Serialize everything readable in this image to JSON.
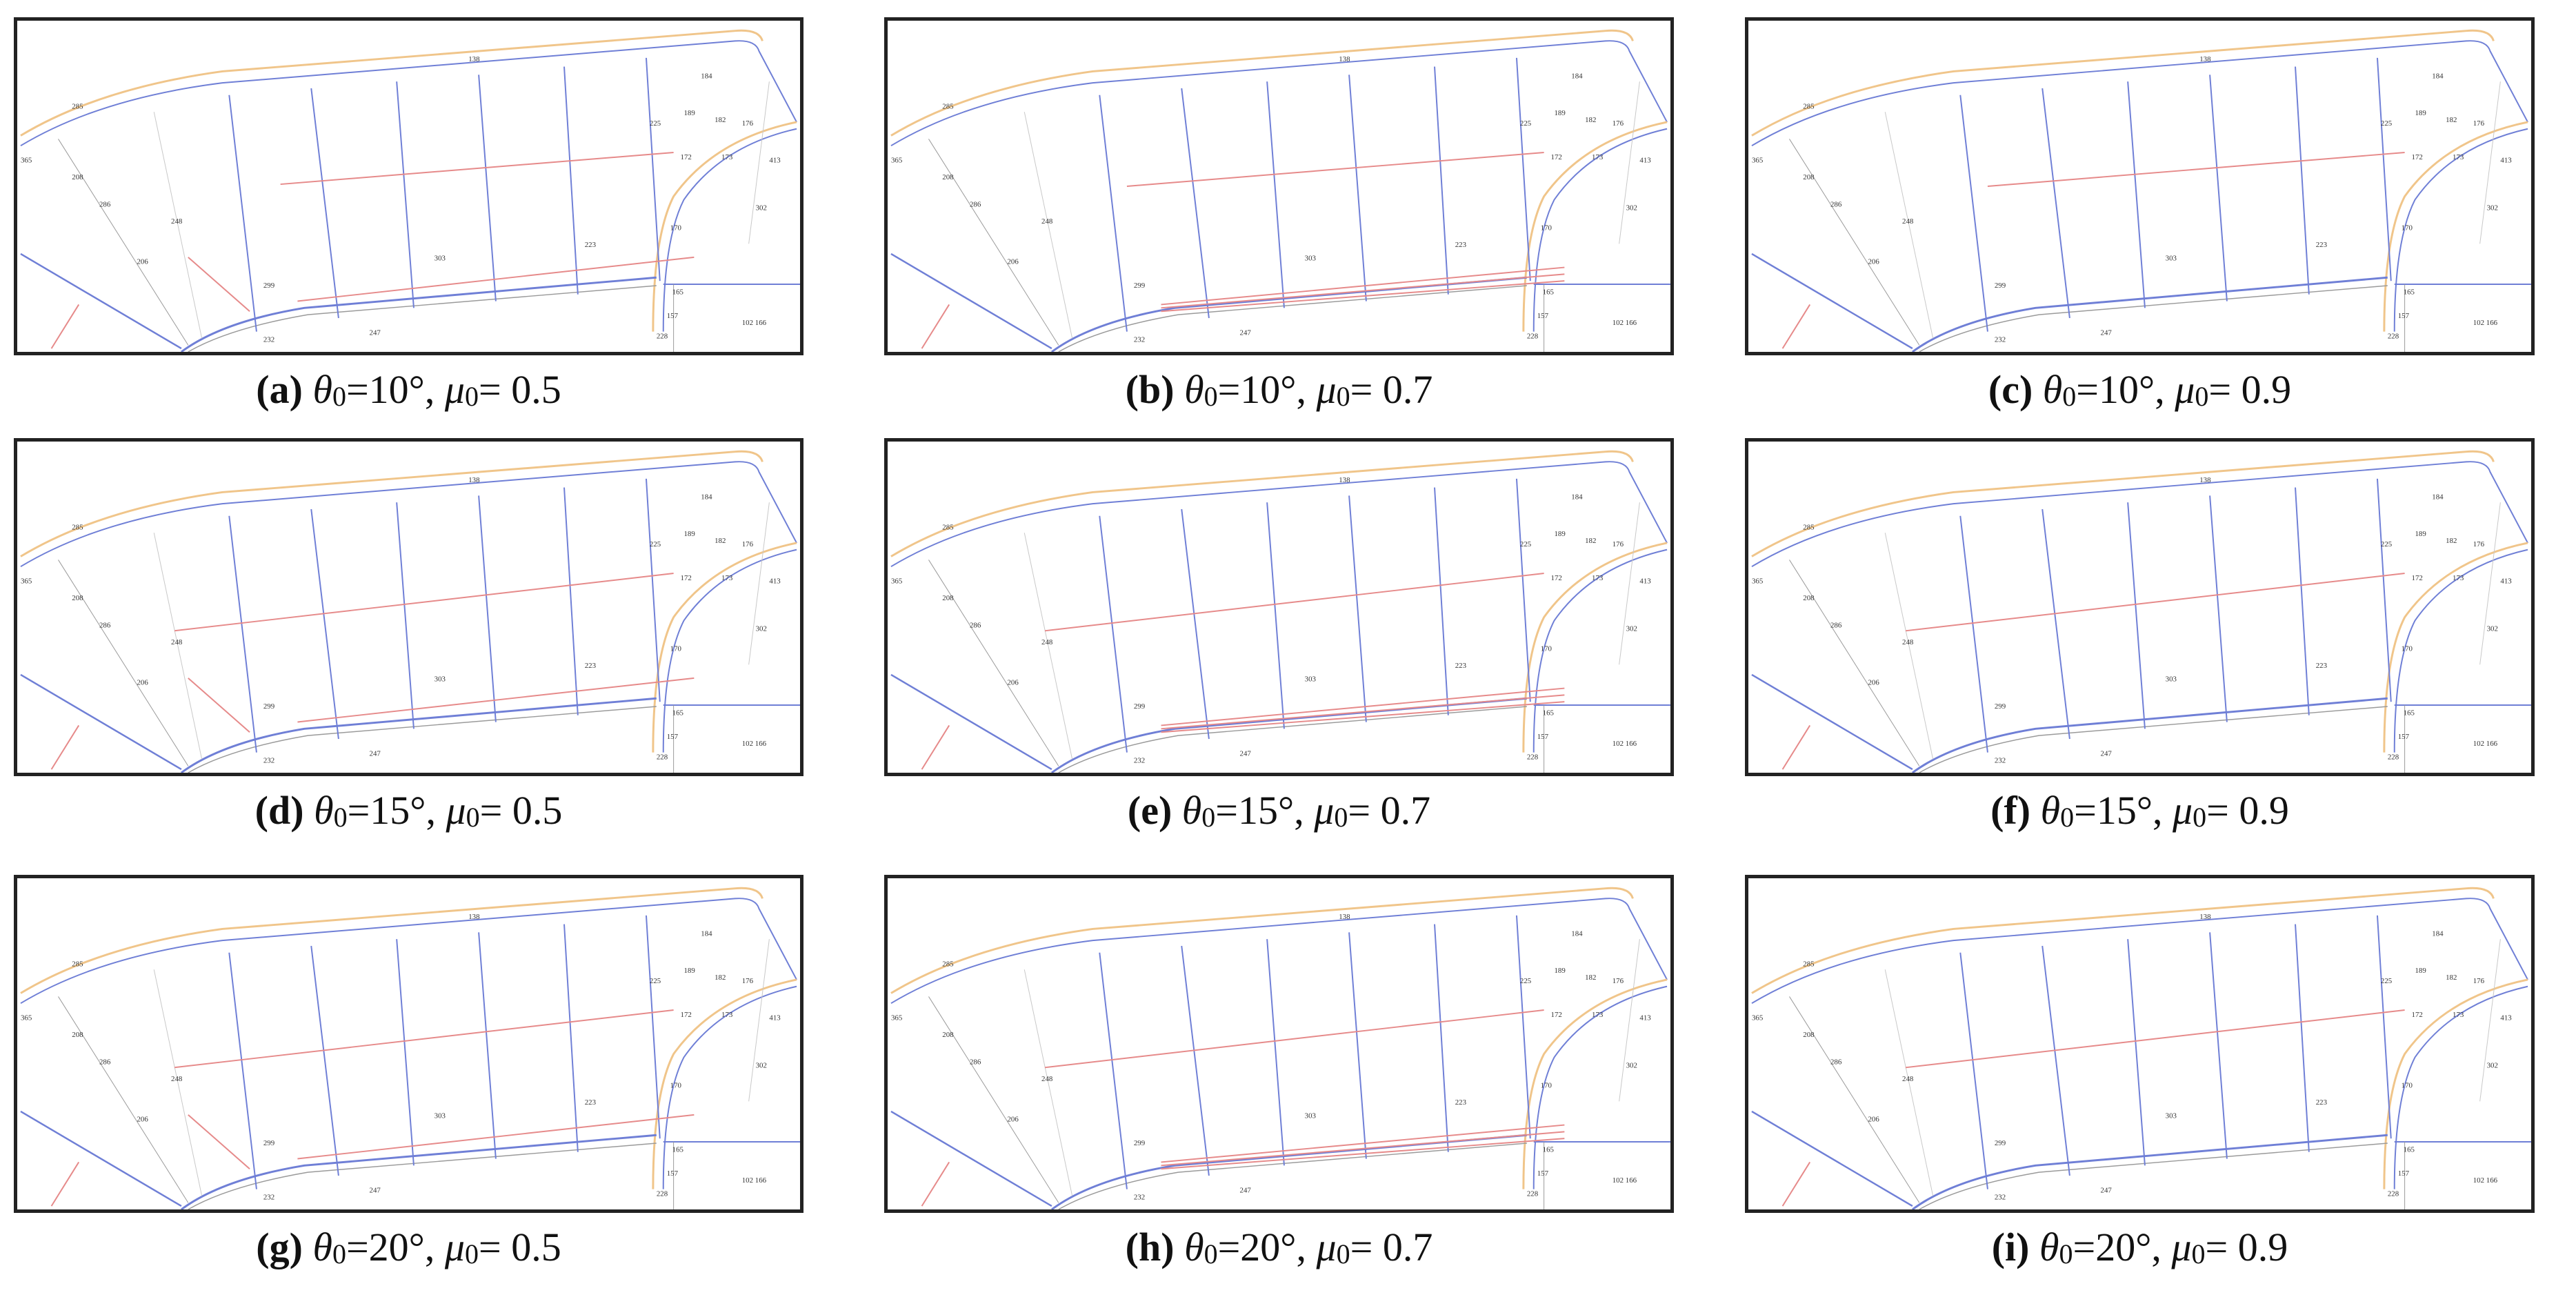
{
  "panels": [
    {
      "label": "(a)",
      "theta": "10°",
      "mu": "0.5",
      "pipe_segments": [
        [
          385,
          242,
          960,
          195
        ],
        [
          410,
          415,
          990,
          350
        ],
        [
          250,
          350,
          340,
          430
        ]
      ]
    },
    {
      "label": "(b)",
      "theta": "10°",
      "mu": "0.7",
      "pipe_segments": [
        [
          350,
          245,
          960,
          195
        ],
        [
          400,
          420,
          990,
          365
        ],
        [
          400,
          425,
          990,
          375
        ],
        [
          400,
          430,
          990,
          385
        ]
      ]
    },
    {
      "label": "(c)",
      "theta": "10°",
      "mu": "0.9",
      "pipe_segments": [
        [
          350,
          245,
          960,
          195
        ]
      ]
    },
    {
      "label": "(d)",
      "theta": "15°",
      "mu": "0.5",
      "pipe_segments": [
        [
          230,
          280,
          960,
          195
        ],
        [
          410,
          415,
          990,
          350
        ],
        [
          250,
          350,
          340,
          430
        ]
      ]
    },
    {
      "label": "(e)",
      "theta": "15°",
      "mu": "0.7",
      "pipe_segments": [
        [
          230,
          280,
          960,
          195
        ],
        [
          400,
          420,
          990,
          365
        ],
        [
          400,
          425,
          990,
          375
        ],
        [
          400,
          430,
          990,
          385
        ]
      ]
    },
    {
      "label": "(f)",
      "theta": "15°",
      "mu": "0.9",
      "pipe_segments": [
        [
          230,
          280,
          960,
          195
        ]
      ]
    },
    {
      "label": "(g)",
      "theta": "20°",
      "mu": "0.5",
      "pipe_segments": [
        [
          230,
          280,
          960,
          195
        ],
        [
          410,
          415,
          990,
          350
        ],
        [
          250,
          350,
          340,
          430
        ]
      ]
    },
    {
      "label": "(h)",
      "theta": "20°",
      "mu": "0.7",
      "pipe_segments": [
        [
          230,
          280,
          960,
          195
        ],
        [
          400,
          420,
          990,
          365
        ],
        [
          400,
          425,
          990,
          375
        ],
        [
          400,
          430,
          990,
          385
        ]
      ]
    },
    {
      "label": "(i)",
      "theta": "20°",
      "mu": "0.9",
      "pipe_segments": [
        [
          230,
          280,
          960,
          195
        ]
      ]
    }
  ],
  "caption_theta_symbol": "θ",
  "caption_mu_symbol": "μ",
  "caption_subscript": "0",
  "map_labels": {
    "road_top": "138",
    "left_top": "285",
    "left_a": "365",
    "left_b": "208",
    "left_c": "286",
    "left_d": "206",
    "left_e": "248",
    "corner_a": "225",
    "corner_b": "189",
    "corner_c": "182",
    "corner_d": "184",
    "corner_e": "172",
    "corner_f": "176",
    "corner_g": "173",
    "corner_h": "413",
    "corner_i": "302",
    "corner_j": "170",
    "mid_a": "303",
    "mid_b": "223",
    "mid_c": "299",
    "bottom_a": "228",
    "bottom_b": "157",
    "bottom_c": "102 166",
    "bottom_d": "165",
    "bottom_e": "232",
    "bottom_f": "247"
  },
  "colors": {
    "road": "#f0c58a",
    "parcel": "#6f7fd6",
    "pipe": "#e68a8a",
    "thin": "#9a9a9a"
  }
}
